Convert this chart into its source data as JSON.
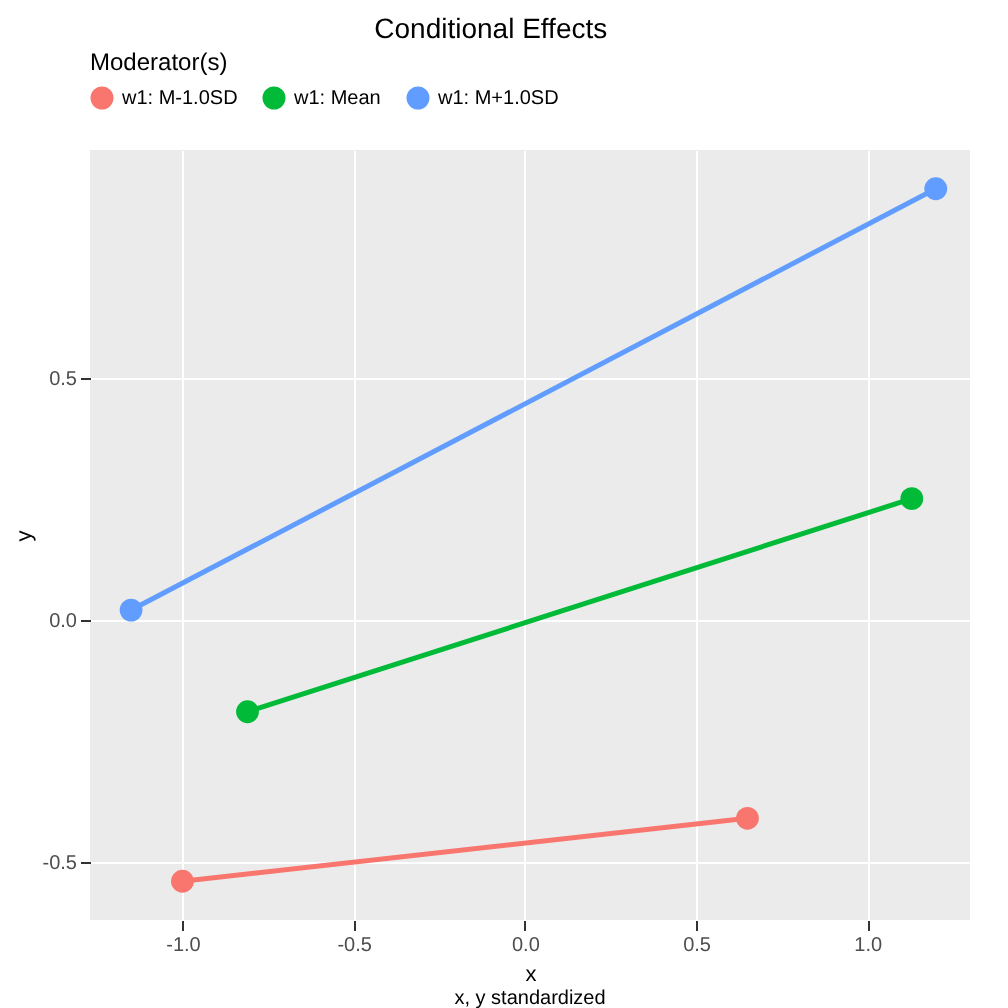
{
  "chart_data": {
    "type": "line",
    "title": "Conditional Effects",
    "xlabel": "x",
    "ylabel": "y",
    "annotations": [
      "x, y standardized"
    ],
    "legend_title": "Moderator(s)",
    "legend": "top",
    "marker": "circle",
    "line_style": "solid",
    "grid": true,
    "xlim": [
      -1.27,
      1.3
    ],
    "ylim": [
      -0.62,
      0.97
    ],
    "xticks": [
      {
        "value": -1,
        "label": "-1.0"
      },
      {
        "value": -0.5,
        "label": "-0.5"
      },
      {
        "value": 0,
        "label": "0.0"
      },
      {
        "value": 0.5,
        "label": "0.5"
      },
      {
        "value": 1,
        "label": "1.0"
      }
    ],
    "yticks": [
      {
        "value": -0.5,
        "label": "-0.5"
      },
      {
        "value": 0,
        "label": "0.0"
      },
      {
        "value": 0.5,
        "label": "0.5"
      }
    ],
    "series": [
      {
        "name": "w1: M-1.0SD",
        "color": "#f8766d",
        "x": [
          -1.0,
          0.65
        ],
        "values": [
          -0.54,
          -0.41
        ]
      },
      {
        "name": "w1: Mean",
        "color": "#00ba38",
        "x": [
          -0.81,
          1.13
        ],
        "values": [
          -0.19,
          0.25
        ]
      },
      {
        "name": "w1: M+1.0SD",
        "color": "#619cff",
        "x": [
          -1.15,
          1.2
        ],
        "values": [
          0.02,
          0.89
        ]
      }
    ]
  }
}
